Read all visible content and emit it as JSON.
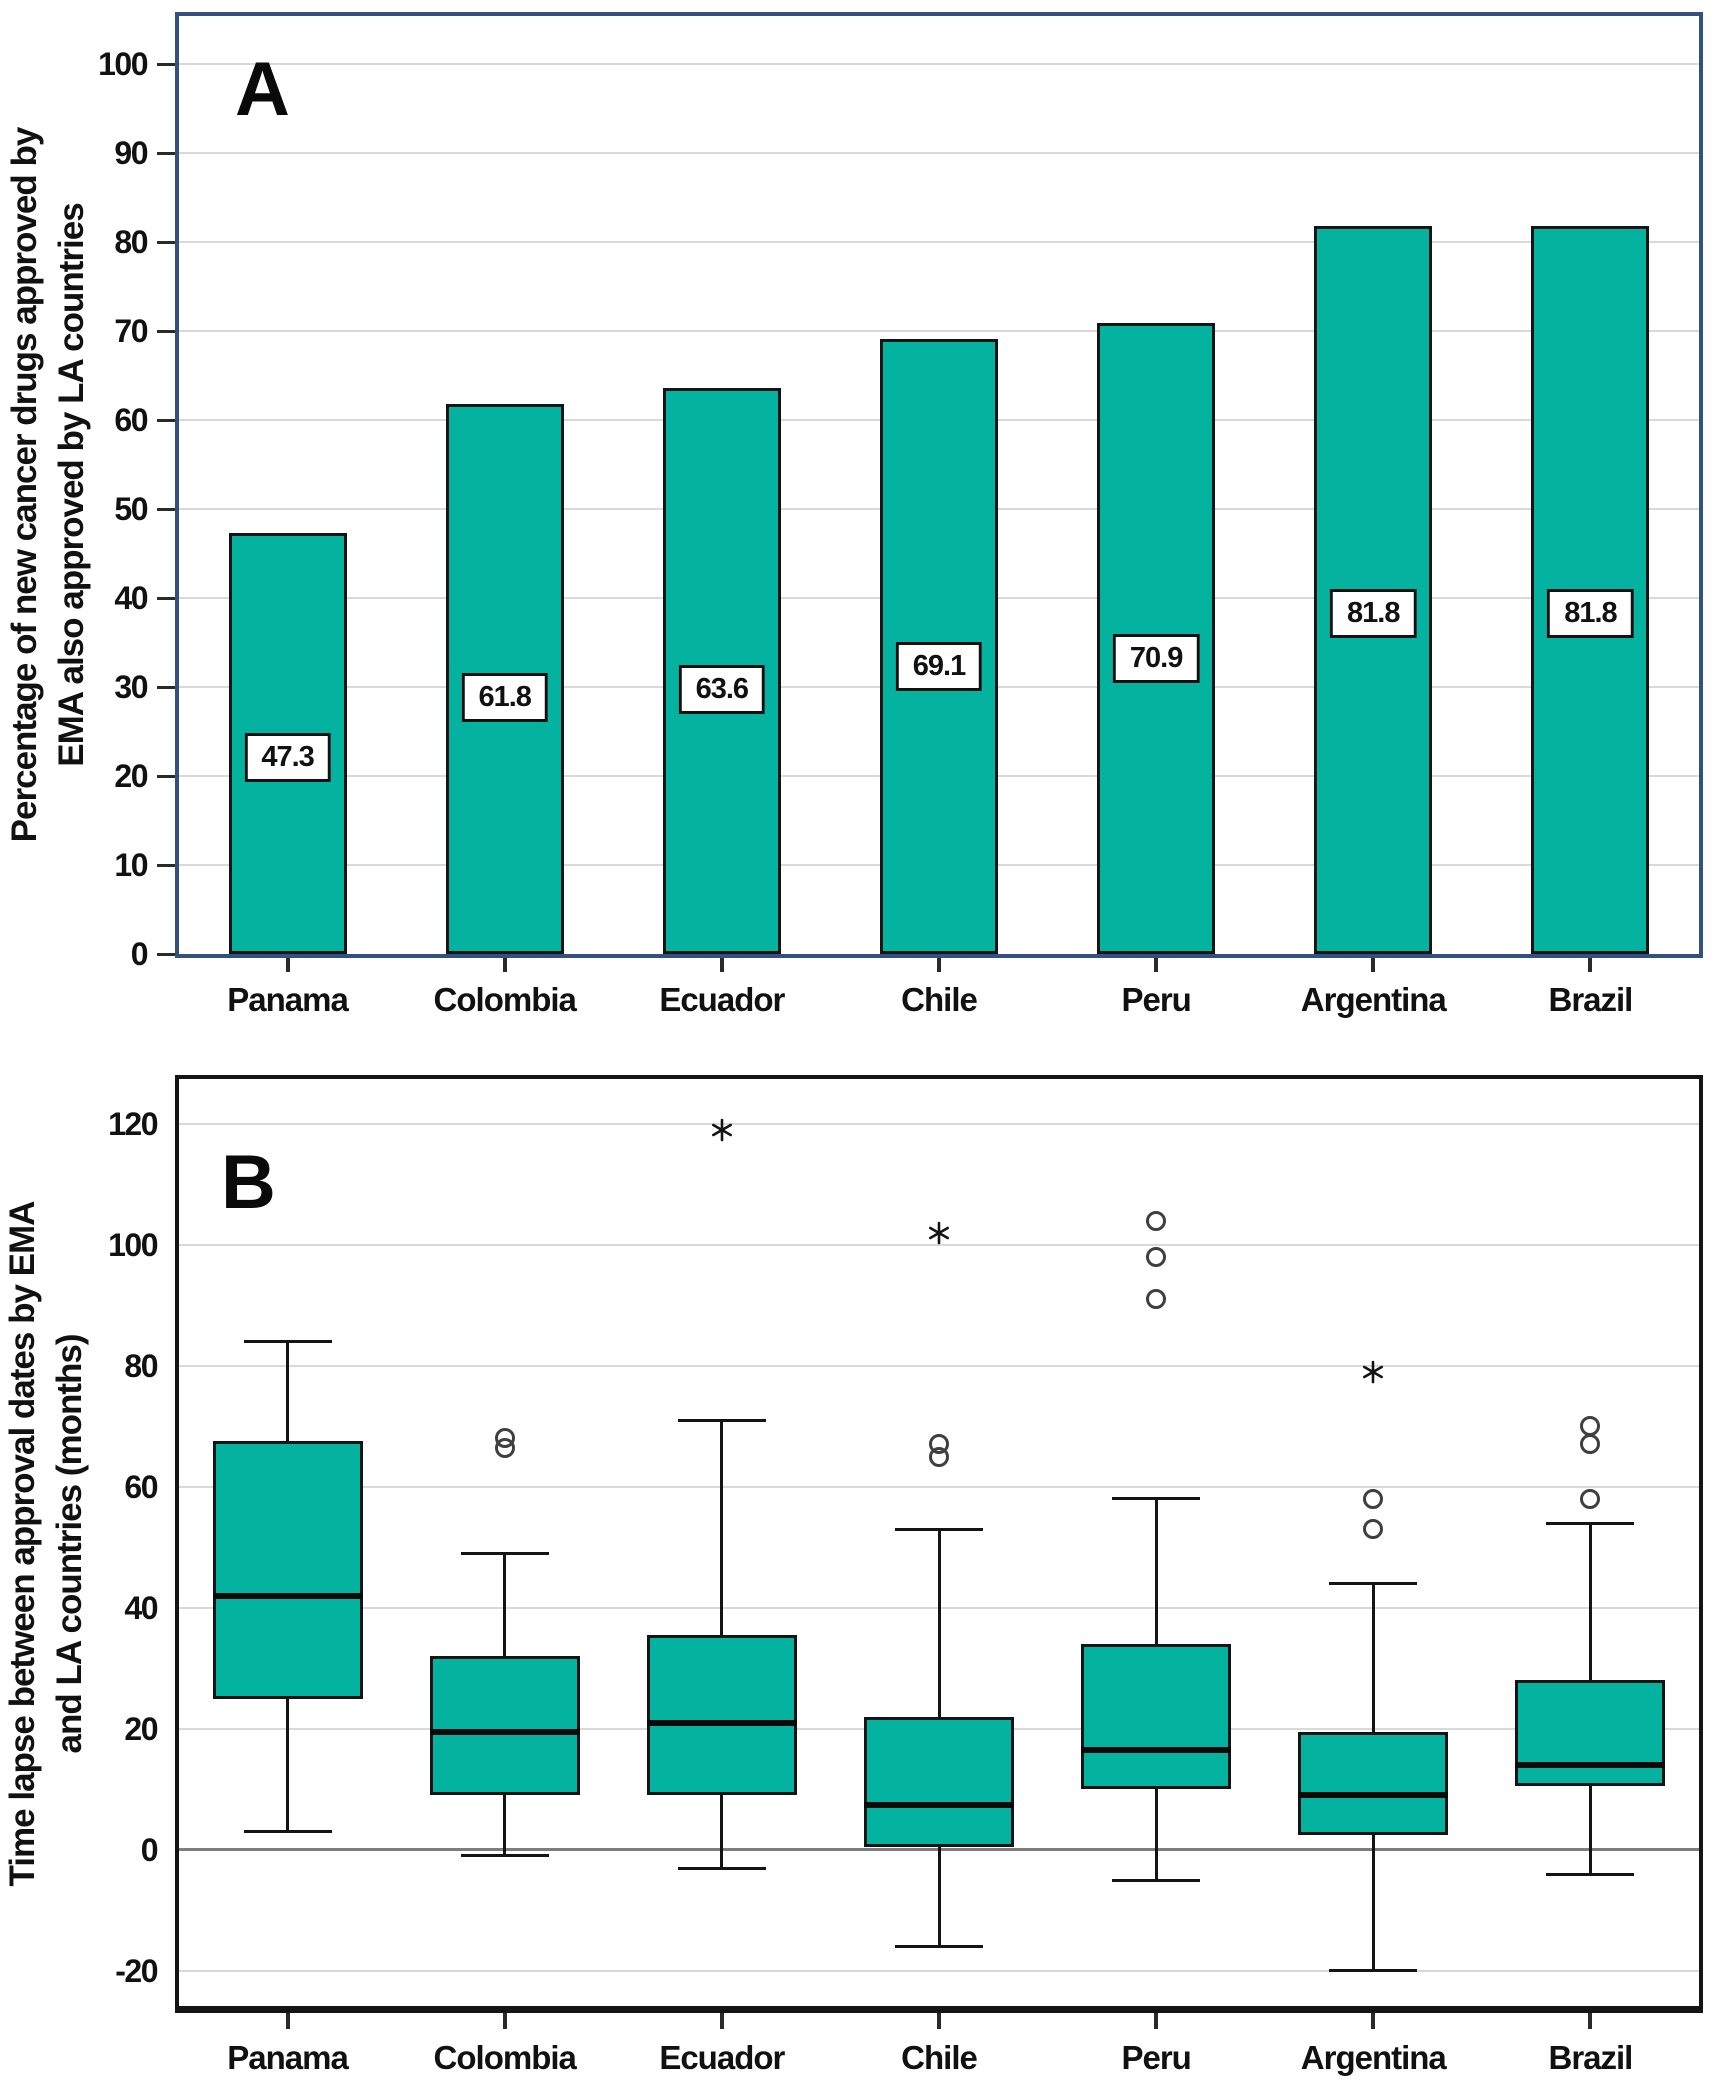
{
  "figure": {
    "panel_a": {
      "label": "A"
    },
    "panel_b": {
      "label": "B"
    }
  },
  "colors": {
    "box_fill": "#04b2a0",
    "box_border": "#141414",
    "frame_a": "#34507e",
    "frame_b": "#141414",
    "gridline": "#d9d9d9",
    "zero_line": "#7d7d7d",
    "outlier_stroke": "#3f3f3f",
    "label_box_bg": "#ffffff"
  },
  "chart_data": [
    {
      "type": "bar",
      "panel_label": "A",
      "ylabel_lines": [
        "Percentage of new cancer drugs approved by",
        "EMA also approved by LA countries"
      ],
      "categories": [
        "Panama",
        "Colombia",
        "Ecuador",
        "Chile",
        "Peru",
        "Argentina",
        "Brazil"
      ],
      "values": [
        47.3,
        61.8,
        63.6,
        69.1,
        70.9,
        81.8,
        81.8
      ],
      "value_labels": [
        "47.3",
        "61.8",
        "63.6",
        "69.1",
        "70.9",
        "81.8",
        "81.8"
      ],
      "yticks": [
        0,
        10,
        20,
        30,
        40,
        50,
        60,
        70,
        80,
        90,
        100
      ],
      "ylim": [
        0,
        105.4
      ],
      "grid": true,
      "legend": "none"
    },
    {
      "type": "boxplot",
      "panel_label": "B",
      "ylabel_lines": [
        "Time lapse between approval dates by EMA",
        "and LA countries (months)"
      ],
      "categories": [
        "Panama",
        "Colombia",
        "Ecuador",
        "Chile",
        "Peru",
        "Argentina",
        "Brazil"
      ],
      "series": [
        {
          "name": "Panama",
          "whisker_low": 3,
          "q1": 25,
          "median": 42,
          "q3": 67.5,
          "whisker_high": 84,
          "outliers_circle": [],
          "outliers_star": []
        },
        {
          "name": "Colombia",
          "whisker_low": -1,
          "q1": 9,
          "median": 19.5,
          "q3": 32,
          "whisker_high": 49,
          "outliers_circle": [
            68,
            66.5
          ],
          "outliers_star": []
        },
        {
          "name": "Ecuador",
          "whisker_low": -3,
          "q1": 9,
          "median": 21,
          "q3": 35.5,
          "whisker_high": 71,
          "outliers_circle": [],
          "outliers_star": [
            119
          ]
        },
        {
          "name": "Chile",
          "whisker_low": -16,
          "q1": 0.5,
          "median": 7.5,
          "q3": 22,
          "whisker_high": 53,
          "outliers_circle": [
            67,
            65
          ],
          "outliers_star": [
            102
          ]
        },
        {
          "name": "Peru",
          "whisker_low": -5,
          "q1": 10,
          "median": 16.5,
          "q3": 34,
          "whisker_high": 58,
          "outliers_circle": [
            104,
            98,
            91
          ],
          "outliers_star": []
        },
        {
          "name": "Argentina",
          "whisker_low": -20,
          "q1": 2.5,
          "median": 9,
          "q3": 19.5,
          "whisker_high": 44,
          "outliers_circle": [
            58,
            53
          ],
          "outliers_star": [
            79
          ]
        },
        {
          "name": "Brazil",
          "whisker_low": -4,
          "q1": 10.5,
          "median": 14,
          "q3": 28,
          "whisker_high": 54,
          "outliers_circle": [
            70,
            67,
            58
          ],
          "outliers_star": []
        }
      ],
      "yticks": [
        120,
        100,
        80,
        60,
        40,
        20,
        0,
        -20
      ],
      "ylim": [
        -25.8,
        127.4
      ],
      "zero_line": true,
      "grid": true,
      "legend": "none"
    }
  ]
}
